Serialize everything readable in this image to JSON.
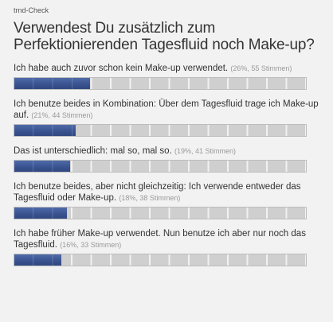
{
  "brand": "trnd-Check",
  "question": "Verwendest Du zusätzlich zum Perfektionierenden Tagesfluid noch Make-up?",
  "options": [
    {
      "text": "Ich habe auch zuvor schon kein Make-up verwendet.",
      "meta": "(26%, 55 Stimmen)",
      "percent": 26
    },
    {
      "text": "Ich benutze beides in Kombination: Über dem Tagesfluid trage ich Make-up auf.",
      "meta": "(21%, 44 Stimmen)",
      "percent": 21
    },
    {
      "text": "Das ist unterschiedlich: mal so, mal so.",
      "meta": "(19%, 41 Stimmen)",
      "percent": 19
    },
    {
      "text": "Ich benutze beides, aber nicht gleichzeitig: Ich verwende entweder das Tagesfluid oder Make-up.",
      "meta": "(18%, 38 Stimmen)",
      "percent": 18
    },
    {
      "text": "Ich habe früher Make-up verwendet. Nun benutze ich aber nur noch das Tagesfluid.",
      "meta": "(16%, 33 Stimmen)",
      "percent": 16
    }
  ],
  "colors": {
    "bar_fill": "#3a5491",
    "bar_track": "#cfcfcf",
    "background": "#f2f2f2"
  }
}
